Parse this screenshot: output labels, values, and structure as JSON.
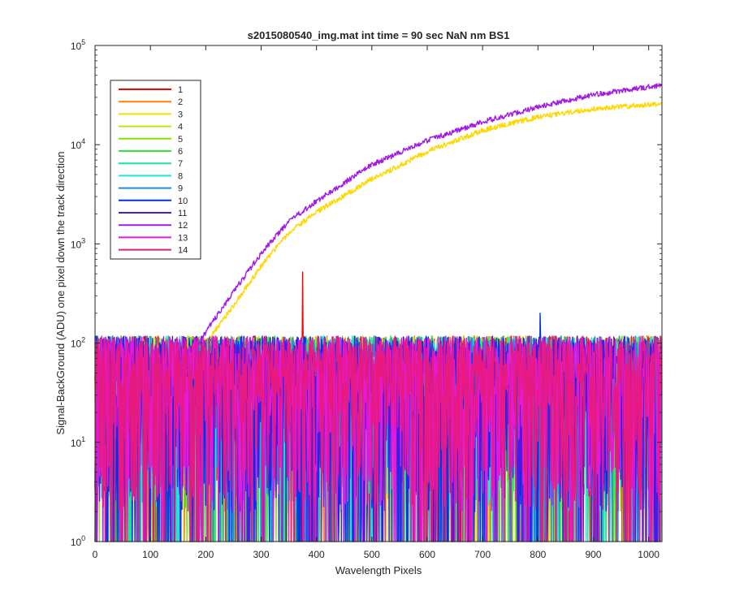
{
  "chart_data": {
    "type": "line",
    "title": "s2015080540_img.mat int time = 90 sec  NaN nm BS1",
    "xlabel": "Wavelength Pixels",
    "ylabel": "Signal-BackGround (ADU) one pixel down the track direction",
    "xlim": [
      0,
      1024
    ],
    "ylim": [
      1,
      100000
    ],
    "yscale": "log",
    "grid": false,
    "legend_position": "top-left",
    "x_ticks": [
      "0",
      "100",
      "200",
      "300",
      "400",
      "500",
      "600",
      "700",
      "800",
      "900",
      "1000"
    ],
    "y_ticks": [
      {
        "base": "10",
        "exp": "0"
      },
      {
        "base": "10",
        "exp": "1"
      },
      {
        "base": "10",
        "exp": "2"
      },
      {
        "base": "10",
        "exp": "3"
      },
      {
        "base": "10",
        "exp": "4"
      },
      {
        "base": "10",
        "exp": "5"
      }
    ],
    "series": [
      {
        "name": "1",
        "color": "#ff0000",
        "kind": "noise",
        "spike": {
          "x": 375,
          "y": 520
        }
      },
      {
        "name": "2",
        "color": "#ff7f00",
        "kind": "noise"
      },
      {
        "name": "3",
        "color": "#ffd700",
        "kind": "signal",
        "points": [
          [
            120,
            12
          ],
          [
            150,
            30
          ],
          [
            200,
            100
          ],
          [
            250,
            240
          ],
          [
            300,
            600
          ],
          [
            350,
            1300
          ],
          [
            400,
            2100
          ],
          [
            500,
            4500
          ],
          [
            600,
            8500
          ],
          [
            700,
            14000
          ],
          [
            800,
            19000
          ],
          [
            900,
            23000
          ],
          [
            1024,
            26000
          ]
        ]
      },
      {
        "name": "4",
        "color": "#c8e600",
        "kind": "noise"
      },
      {
        "name": "5",
        "color": "#7fe600",
        "kind": "noise"
      },
      {
        "name": "6",
        "color": "#33e633",
        "kind": "noise"
      },
      {
        "name": "7",
        "color": "#1ae69a",
        "kind": "noise"
      },
      {
        "name": "8",
        "color": "#19e6e6",
        "kind": "noise"
      },
      {
        "name": "9",
        "color": "#1a8ce6",
        "kind": "noise"
      },
      {
        "name": "10",
        "color": "#0033e6",
        "kind": "noise",
        "spike": {
          "x": 804,
          "y": 200
        }
      },
      {
        "name": "11",
        "color": "#4c1ae6",
        "kind": "noise"
      },
      {
        "name": "12",
        "color": "#a31ae6",
        "kind": "signal",
        "points": [
          [
            120,
            15
          ],
          [
            150,
            40
          ],
          [
            200,
            130
          ],
          [
            250,
            330
          ],
          [
            300,
            800
          ],
          [
            350,
            1700
          ],
          [
            400,
            2700
          ],
          [
            500,
            6300
          ],
          [
            600,
            11000
          ],
          [
            700,
            17000
          ],
          [
            800,
            24000
          ],
          [
            900,
            32000
          ],
          [
            1024,
            40000
          ]
        ]
      },
      {
        "name": "13",
        "color": "#e619d9",
        "kind": "noise"
      },
      {
        "name": "14",
        "color": "#e61a80",
        "kind": "noise"
      }
    ]
  }
}
